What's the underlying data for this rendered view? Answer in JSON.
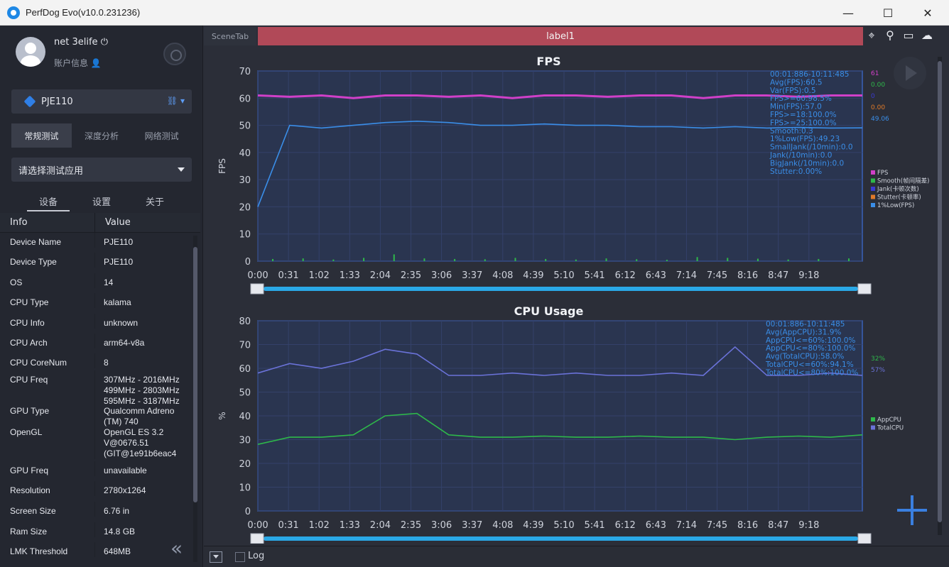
{
  "window": {
    "title": "PerfDog Evo(v10.0.231236)",
    "controls": {
      "minimize": "—",
      "maximize": "☐",
      "close": "✕"
    }
  },
  "user": {
    "name": "net 3elife",
    "info_label": "账户信息"
  },
  "device_select": {
    "name": "PJE110"
  },
  "tabs": [
    "常规测试",
    "深度分析",
    "网络测试"
  ],
  "app_select": {
    "placeholder": "请选择测试应用"
  },
  "subtabs": [
    "设备",
    "设置",
    "关于"
  ],
  "device_table": {
    "headers": {
      "info": "Info",
      "value": "Value"
    },
    "rows": [
      {
        "k": "Device Name",
        "v": "PJE110"
      },
      {
        "k": "Device Type",
        "v": "PJE110"
      },
      {
        "k": "OS",
        "v": "14"
      },
      {
        "k": "CPU Type",
        "v": "kalama"
      },
      {
        "k": "CPU Info",
        "v": "unknown"
      },
      {
        "k": "CPU Arch",
        "v": "arm64-v8a"
      },
      {
        "k": "CPU CoreNum",
        "v": "8"
      },
      {
        "k": "CPU Freq",
        "v": "307MHz - 2016MHz\n499MHz - 2803MHz\n595MHz - 3187MHz"
      },
      {
        "k": "GPU Type",
        "v": "Qualcomm Adreno\n(TM) 740"
      },
      {
        "k": "OpenGL",
        "v": "OpenGL ES 3.2\nV@0676.51\n(GIT@1e91b6eac4"
      },
      {
        "k": "GPU Freq",
        "v": "unavailable"
      },
      {
        "k": "Resolution",
        "v": "2780x1264"
      },
      {
        "k": "Screen Size",
        "v": "6.76 in"
      },
      {
        "k": "Ram Size",
        "v": "14.8 GB"
      },
      {
        "k": "LMK Threshold",
        "v": "648MB"
      }
    ]
  },
  "main": {
    "scene_tab": "SceneTab",
    "label": "label1",
    "log_label": "Log"
  },
  "colors": {
    "fps": "#d040c8",
    "smooth": "#2eb84a",
    "jank": "#3a3ad0",
    "stutter": "#e07a28",
    "low1": "#3a8ee8",
    "appcpu": "#2eb84a",
    "totalcpu": "#6a72d8",
    "chart_bg": "#2a3550",
    "accent": "#2aa8e6"
  },
  "chart_data": [
    {
      "type": "line",
      "title": "FPS",
      "ylabel": "FPS",
      "ylim": [
        0,
        70
      ],
      "yticks": [
        0,
        10,
        20,
        30,
        40,
        50,
        60,
        70
      ],
      "xticks": [
        "0:00",
        "0:31",
        "1:02",
        "1:33",
        "2:04",
        "2:35",
        "3:06",
        "3:37",
        "4:08",
        "4:39",
        "5:10",
        "5:41",
        "6:12",
        "6:43",
        "7:14",
        "7:45",
        "8:16",
        "8:47",
        "9:18"
      ],
      "stats": [
        "00:01:886-10:11:485",
        "Avg(FPS):60.5",
        "Var(FPS):0.5",
        "FPS>=60:98.5%",
        "Min(FPS):57.0",
        "FPS>=18:100.0%",
        "FPS>=25:100.0%",
        "Smooth:0.3",
        "1%Low(FPS):49.23",
        "SmallJank(/10min):0.0",
        "Jank(/10min):0.0",
        "BigJank(/10min):0.0",
        "Stutter:0.00%"
      ],
      "current_values": [
        "61",
        "0.00",
        "0",
        "0.00",
        "49.06"
      ],
      "legend": [
        "FPS",
        "Smooth(帧间隔差)",
        "Jank(卡顿次数)",
        "Stutter(卡顿率)",
        "1%Low(FPS)"
      ],
      "series": [
        {
          "name": "FPS",
          "values": [
            61,
            60.5,
            61,
            60,
            61,
            61,
            60.5,
            61,
            60,
            61,
            61,
            60.5,
            61,
            61,
            60,
            61,
            61,
            60.5,
            61,
            61
          ]
        },
        {
          "name": "1%Low(FPS)",
          "values": [
            20,
            50,
            49,
            50,
            51,
            51.5,
            51,
            50,
            50,
            50.5,
            50,
            50,
            49.5,
            49.5,
            49,
            49.5,
            49,
            49.2,
            49,
            49.06
          ]
        },
        {
          "name": "Smooth",
          "values": [
            0.8,
            1,
            0.6,
            1.2,
            2.5,
            1,
            0.8,
            0.7,
            1.2,
            0.8,
            0.6,
            1,
            0.7,
            0.5,
            1.5,
            1.2,
            0.9,
            0.6,
            0.8,
            1
          ]
        }
      ]
    },
    {
      "type": "line",
      "title": "CPU Usage",
      "ylabel": "%",
      "ylim": [
        0,
        80
      ],
      "yticks": [
        0,
        10,
        20,
        30,
        40,
        50,
        60,
        70,
        80
      ],
      "xticks": [
        "0:00",
        "0:31",
        "1:02",
        "1:33",
        "2:04",
        "2:35",
        "3:06",
        "3:37",
        "4:08",
        "4:39",
        "5:10",
        "5:41",
        "6:12",
        "6:43",
        "7:14",
        "7:45",
        "8:16",
        "8:47",
        "9:18"
      ],
      "stats": [
        "00:01:886-10:11:485",
        "Avg(AppCPU):31.9%",
        "AppCPU<=60%:100.0%",
        "AppCPU<=80%:100.0%",
        "Avg(TotalCPU):58.0%",
        "TotalCPU<=60%:94.1%",
        "TotalCPU<=80%:100.0%"
      ],
      "current_values": [
        "32%",
        "57%"
      ],
      "legend": [
        "AppCPU",
        "TotalCPU"
      ],
      "series": [
        {
          "name": "AppCPU",
          "values": [
            28,
            31,
            31,
            32,
            40,
            41,
            32,
            31,
            31,
            31.5,
            31,
            31,
            31.5,
            31,
            31,
            30,
            31,
            31.5,
            31,
            32
          ]
        },
        {
          "name": "TotalCPU",
          "values": [
            58,
            62,
            60,
            63,
            68,
            66,
            57,
            57,
            58,
            57,
            58,
            57,
            57,
            58,
            57,
            69,
            57,
            57,
            58,
            57
          ]
        }
      ]
    }
  ]
}
